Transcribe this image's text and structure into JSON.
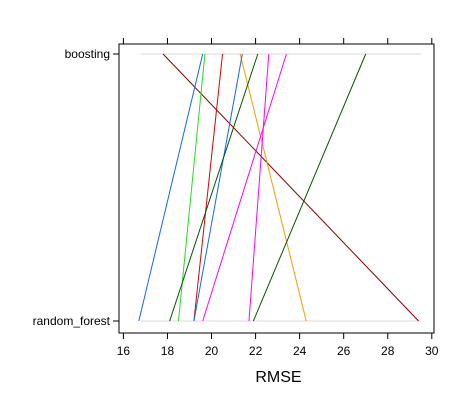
{
  "chart_data": {
    "type": "parallel",
    "title": "",
    "xlabel": "RMSE",
    "ylabel": "",
    "xlim": [
      15.8,
      30.1
    ],
    "x_ticks": [
      16,
      18,
      20,
      22,
      24,
      26,
      28,
      30
    ],
    "x_tick_labels": [
      "16",
      "18",
      "20",
      "22",
      "24",
      "26",
      "28",
      "30"
    ],
    "categories": [
      "boosting",
      "random_forest"
    ],
    "grid": false,
    "legend": "none",
    "series": [
      {
        "values": [
          17.8,
          29.4
        ],
        "color": "#8B0000"
      },
      {
        "values": [
          19.6,
          16.7
        ],
        "color": "#1565FF"
      },
      {
        "values": [
          19.7,
          18.5
        ],
        "color": "#22DD22"
      },
      {
        "values": [
          20.5,
          19.2
        ],
        "color": "#DD0000"
      },
      {
        "values": [
          21.3,
          24.3
        ],
        "color": "#FF9900"
      },
      {
        "values": [
          21.4,
          19.2
        ],
        "color": "#1565FF"
      },
      {
        "values": [
          22.1,
          18.1
        ],
        "color": "#005500"
      },
      {
        "values": [
          22.6,
          21.7
        ],
        "color": "#FF00FF"
      },
      {
        "values": [
          23.4,
          19.6
        ],
        "color": "#FF00FF"
      },
      {
        "values": [
          27.0,
          21.9
        ],
        "color": "#005500"
      }
    ]
  }
}
